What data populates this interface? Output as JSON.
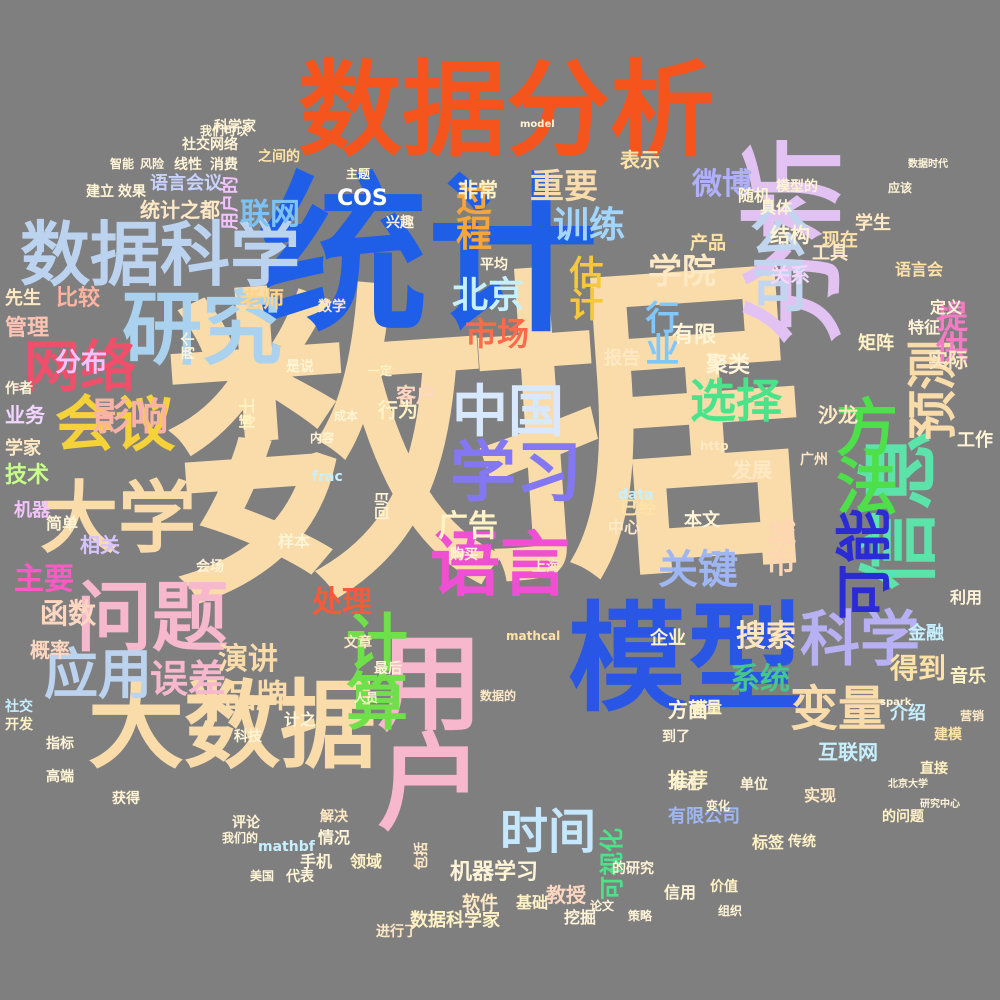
{
  "word_cloud": {
    "background_color": "#7f7f7f",
    "words": [
      {
        "text": "数据",
        "color": "#f9dcaa"
      },
      {
        "text": "统计",
        "color": "#1f5fe8"
      },
      {
        "text": "数据分析",
        "color": "#f5541c"
      },
      {
        "text": "分析",
        "color": "#e2c2f3"
      },
      {
        "text": "模型",
        "color": "#2a56e6"
      },
      {
        "text": "大数据",
        "color": "#f9dcaa"
      },
      {
        "text": "用户",
        "color": "#f7b7cc"
      },
      {
        "text": "数据科学",
        "color": "#bcd3f0"
      },
      {
        "text": "研究",
        "color": "#aad1ee"
      },
      {
        "text": "信息",
        "color": "#5ce3aa"
      },
      {
        "text": "大学",
        "color": "#f9dcaa"
      },
      {
        "text": "问题",
        "color": "#f7b7cc"
      },
      {
        "text": "语言",
        "color": "#ef4fd2"
      },
      {
        "text": "学习",
        "color": "#8477f2"
      },
      {
        "text": "方法",
        "color": "#4ee04a"
      },
      {
        "text": "科学",
        "color": "#b7b0f2"
      },
      {
        "text": "计算",
        "color": "#6fe04a"
      },
      {
        "text": "会议",
        "color": "#f5d23a"
      },
      {
        "text": "中国",
        "color": "#d8e8ff"
      },
      {
        "text": "可能",
        "color": "#2b2bd6"
      },
      {
        "text": "网络",
        "color": "#ef4f6a"
      },
      {
        "text": "应用",
        "color": "#bcd3f0"
      },
      {
        "text": "预测",
        "color": "#f9dcaa"
      },
      {
        "text": "公司",
        "color": "#c1d6ee"
      },
      {
        "text": "时间",
        "color": "#c5e8ff"
      },
      {
        "text": "变量",
        "color": "#f9dcaa"
      },
      {
        "text": "选择",
        "color": "#4be38a"
      },
      {
        "text": "影响",
        "color": "#f9b2a3"
      },
      {
        "text": "关键",
        "color": "#9fb6f4"
      },
      {
        "text": "过程",
        "color": "#f5a53a"
      },
      {
        "text": "误差",
        "color": "#f7b7cc"
      },
      {
        "text": "北京",
        "color": "#c6f0ff"
      },
      {
        "text": "训练",
        "color": "#a3d6ff"
      },
      {
        "text": "学院",
        "color": "#ffe8c4"
      },
      {
        "text": "重要",
        "color": "#f9dcaa"
      },
      {
        "text": "行业",
        "color": "#7fc7ff"
      },
      {
        "text": "市场",
        "color": "#ff6a4a"
      },
      {
        "text": "估计",
        "color": "#f7c93a"
      },
      {
        "text": "微博",
        "color": "#b0b0ff"
      },
      {
        "text": "提供",
        "color": "#f57cc4"
      },
      {
        "text": "品牌",
        "color": "#f9dcaa"
      },
      {
        "text": "系统",
        "color": "#47c58f"
      },
      {
        "text": "处理",
        "color": "#f55a3a"
      },
      {
        "text": "演讲",
        "color": "#f9dcaa"
      },
      {
        "text": "搜索",
        "color": "#ffe6c0"
      },
      {
        "text": "城市",
        "color": "#ffd6b3"
      },
      {
        "text": "广告",
        "color": "#fff2c4"
      },
      {
        "text": "联网",
        "color": "#7cc2f5"
      },
      {
        "text": "得到",
        "color": "#ffe2a6"
      },
      {
        "text": "主要",
        "color": "#ff5ac4"
      },
      {
        "text": "函数",
        "color": "#ffd6c0"
      },
      {
        "text": "概率",
        "color": "#ffd6c0"
      },
      {
        "text": "分布",
        "color": "#f4c3ff"
      },
      {
        "text": "管理",
        "color": "#ffc3b3"
      },
      {
        "text": "技术",
        "color": "#c8ff8a"
      },
      {
        "text": "COS",
        "color": "#ffffff"
      },
      {
        "text": "老师",
        "color": "#ffd48a"
      },
      {
        "text": "有限",
        "color": "#fff4d6"
      },
      {
        "text": "聚类",
        "color": "#fff4d6"
      },
      {
        "text": "机器学习",
        "color": "#fff4d6"
      },
      {
        "text": "教授",
        "color": "#ffd6c0"
      },
      {
        "text": "软件",
        "color": "#ffe8c4"
      },
      {
        "text": "数据科学家",
        "color": "#fff2c4"
      },
      {
        "text": "产品",
        "color": "#ffe2a6"
      },
      {
        "text": "推荐",
        "color": "#fff2c4"
      },
      {
        "text": "可视化",
        "color": "#4be38a"
      },
      {
        "text": "有限公司",
        "color": "#9fb6f4"
      },
      {
        "text": "发展",
        "color": "#ffe8c4"
      },
      {
        "text": "结构",
        "color": "#fff4d6"
      },
      {
        "text": "关系",
        "color": "#f2d6ff"
      },
      {
        "text": "学生",
        "color": "#ffe8c4"
      },
      {
        "text": "互联网",
        "color": "#c6f0ff"
      },
      {
        "text": "比较",
        "color": "#ffb3a0"
      },
      {
        "text": "客户",
        "color": "#ffd6c0"
      },
      {
        "text": "实际",
        "color": "#ffe8c4"
      },
      {
        "text": "矩阵",
        "color": "#fff2c4"
      },
      {
        "text": "平台",
        "color": "#f9dcaa"
      },
      {
        "text": "工作",
        "color": "#fff4d6"
      },
      {
        "text": "方面",
        "color": "#fff4d6"
      },
      {
        "text": "统计之都",
        "color": "#ffe8c4"
      },
      {
        "text": "语言会议",
        "color": "#c8d2ff"
      },
      {
        "text": "用户的",
        "color": "#f4c3ff"
      },
      {
        "text": "相关",
        "color": "#d6c3ff"
      },
      {
        "text": "非常",
        "color": "#fff2c4"
      },
      {
        "text": "表示",
        "color": "#ffe2a6"
      },
      {
        "text": "先生",
        "color": "#ffe8c4"
      },
      {
        "text": "沙龙",
        "color": "#ffe8c4"
      },
      {
        "text": "介绍",
        "color": "#c6f0ff"
      },
      {
        "text": "企业",
        "color": "#fff2c4"
      },
      {
        "text": "销量",
        "color": "#fff2c4"
      },
      {
        "text": "行为",
        "color": "#fff2c4"
      },
      {
        "text": "业务",
        "color": "#f2d6ff"
      },
      {
        "text": "手机",
        "color": "#fff4d6"
      },
      {
        "text": "领域",
        "color": "#fff2c4"
      },
      {
        "text": "情况",
        "color": "#fff4d6"
      },
      {
        "text": "解决",
        "color": "#ffe8c4"
      },
      {
        "text": "基础",
        "color": "#fff2c4"
      },
      {
        "text": "挖掘",
        "color": "#fff4d6"
      },
      {
        "text": "进行了",
        "color": "#ffe8c4"
      },
      {
        "text": "音乐",
        "color": "#fff2c4"
      },
      {
        "text": "金融",
        "color": "#c6f0ff"
      },
      {
        "text": "利用",
        "color": "#fff4d6"
      },
      {
        "text": "特征",
        "color": "#fff4d6"
      },
      {
        "text": "定义",
        "color": "#fff4d6"
      },
      {
        "text": "现在",
        "color": "#ffe2a6"
      },
      {
        "text": "具体",
        "color": "#fff4d6"
      },
      {
        "text": "工具",
        "color": "#ffe8c4"
      },
      {
        "text": "语言会",
        "color": "#ffe2a6"
      },
      {
        "text": "实现",
        "color": "#ffe8c4"
      },
      {
        "text": "标签",
        "color": "#fff2c4"
      },
      {
        "text": "广州",
        "color": "#ffe8c4"
      },
      {
        "text": "上海",
        "color": "#ffe8c4"
      },
      {
        "text": "文章",
        "color": "#ffe8c4"
      },
      {
        "text": "本文",
        "color": "#fff4d6"
      },
      {
        "text": "样本",
        "color": "#fff4d6"
      },
      {
        "text": "简单",
        "color": "#fff4d6"
      },
      {
        "text": "学家",
        "color": "#ffe8c4"
      },
      {
        "text": "博士",
        "color": "#fff2c4"
      },
      {
        "text": "随机",
        "color": "#fff4d6"
      },
      {
        "text": "信用",
        "color": "#fff4d6"
      },
      {
        "text": "价值",
        "color": "#fff2c4"
      },
      {
        "text": "传统",
        "color": "#fff2c4"
      },
      {
        "text": "营销",
        "color": "#ffe8c4"
      },
      {
        "text": "直接",
        "color": "#fff2c4"
      },
      {
        "text": "建模",
        "color": "#ffe2a6"
      },
      {
        "text": "开发",
        "color": "#fff2c4"
      },
      {
        "text": "指标",
        "color": "#fff4d6"
      },
      {
        "text": "获得",
        "color": "#fff4d6"
      },
      {
        "text": "评论",
        "color": "#fff4d6"
      },
      {
        "text": "之间的",
        "color": "#ffe2a6"
      },
      {
        "text": "数学",
        "color": "#ffe8c4"
      },
      {
        "text": "社交",
        "color": "#c6f0ff"
      },
      {
        "text": "机器",
        "color": "#f4c3ff"
      },
      {
        "text": "一定",
        "color": "#fff2c4"
      },
      {
        "text": "数据的",
        "color": "#ffe8c4"
      },
      {
        "text": "mathbf",
        "color": "#c6f0ff"
      },
      {
        "text": "frac",
        "color": "#c6f0ff"
      },
      {
        "text": "data",
        "color": "#c6f0ff"
      },
      {
        "text": "http",
        "color": "#ffe8c4"
      },
      {
        "text": "mathcal",
        "color": "#ffe2a6"
      },
      {
        "text": "spark",
        "color": "#fff4d6"
      },
      {
        "text": "model",
        "color": "#fff4d6"
      },
      {
        "text": "的问题",
        "color": "#fff2c4"
      },
      {
        "text": "模型的",
        "color": "#fff4d6"
      },
      {
        "text": "的研究",
        "color": "#fff4d6"
      },
      {
        "text": "我们可以",
        "color": "#fff4d6"
      },
      {
        "text": "包括",
        "color": "#ffe8c4"
      },
      {
        "text": "到了",
        "color": "#fff4d6"
      },
      {
        "text": "代表",
        "color": "#fff4d6"
      },
      {
        "text": "美国",
        "color": "#fff4d6"
      },
      {
        "text": "存在",
        "color": "#fff4d6"
      },
      {
        "text": "单位",
        "color": "#fff4d6"
      },
      {
        "text": "变化",
        "color": "#fff4d6"
      },
      {
        "text": "中心",
        "color": "#ffe8c4"
      },
      {
        "text": "已经",
        "color": "#ffe2a6"
      },
      {
        "text": "报告",
        "color": "#ffe8c4"
      },
      {
        "text": "购买",
        "color": "#fff4d6"
      },
      {
        "text": "人员",
        "color": "#fff4d6"
      },
      {
        "text": "最后",
        "color": "#fff4d6"
      },
      {
        "text": "科技",
        "color": "#fff4d6"
      },
      {
        "text": "计之",
        "color": "#fff4d6"
      },
      {
        "text": "会场",
        "color": "#fff4d6"
      },
      {
        "text": "回归",
        "color": "#fff4d6"
      },
      {
        "text": "两个",
        "color": "#fff4d6"
      },
      {
        "text": "平均",
        "color": "#fff4d6"
      },
      {
        "text": "兴趣",
        "color": "#fff4d6"
      },
      {
        "text": "主题",
        "color": "#fff4d6"
      },
      {
        "text": "效果",
        "color": "#fff4d6"
      },
      {
        "text": "建立",
        "color": "#fff4d6"
      },
      {
        "text": "线性",
        "color": "#fff4d6"
      },
      {
        "text": "消费",
        "color": "#fff4d6"
      },
      {
        "text": "风险",
        "color": "#fff4d6"
      },
      {
        "text": "智能",
        "color": "#fff4d6"
      },
      {
        "text": "社交网络",
        "color": "#fff4d6"
      },
      {
        "text": "科学家",
        "color": "#fff4d6"
      },
      {
        "text": "作者",
        "color": "#fff4d6"
      },
      {
        "text": "是说",
        "color": "#fff4d6"
      },
      {
        "text": "高端",
        "color": "#fff4d6"
      },
      {
        "text": "成本",
        "color": "#fff4d6"
      },
      {
        "text": "内容",
        "color": "#fff4d6"
      },
      {
        "text": "我们的",
        "color": "#fff4d6"
      },
      {
        "text": "策略",
        "color": "#fff4d6"
      },
      {
        "text": "论文",
        "color": "#fff4d6"
      },
      {
        "text": "组织",
        "color": "#fff4d6"
      },
      {
        "text": "应该",
        "color": "#fff4d6"
      },
      {
        "text": "北京大学",
        "color": "#fff4d6"
      },
      {
        "text": "研究中心",
        "color": "#fff4d6"
      },
      {
        "text": "数据时代",
        "color": "#fff4d6"
      }
    ]
  }
}
